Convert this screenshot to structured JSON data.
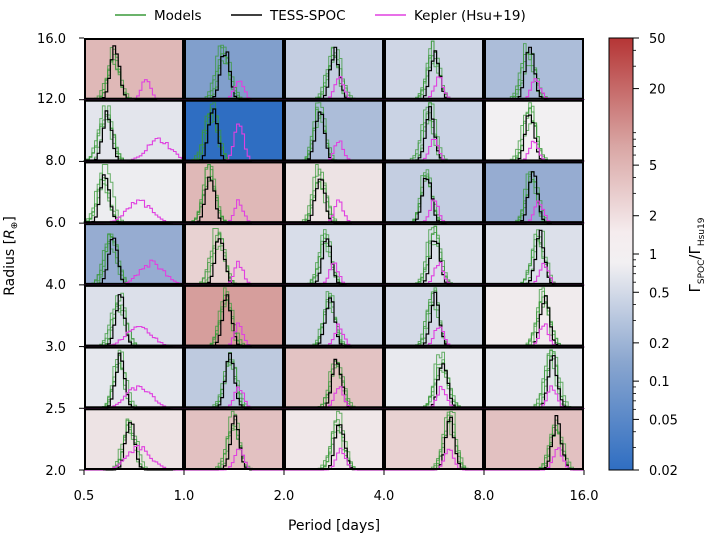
{
  "chart_data": {
    "type": "heatmap",
    "title": "",
    "xlabel": "Period [days]",
    "ylabel": "Radius [R⊕]",
    "ylabel_main": "Radius [",
    "ylabel_unit": "R",
    "ylabel_sub": "⊕",
    "ylabel_close": "]",
    "x_ticks": [
      "0.5",
      "1.0",
      "2.0",
      "4.0",
      "8.0",
      "16.0"
    ],
    "y_ticks": [
      "2.0",
      "2.5",
      "3.0",
      "4.0",
      "6.0",
      "8.0",
      "12.0",
      "16.0"
    ],
    "legend": [
      {
        "label": "Models",
        "color": "#3a9a3a"
      },
      {
        "label": "TESS-SPOC",
        "color": "#000000"
      },
      {
        "label": "Kepler (Hsu+19)",
        "color": "#e040e0"
      }
    ],
    "legend_position": "top-center",
    "colorbar": {
      "label": "ΓSPOC/ΓHsu19",
      "label_main1": "Γ",
      "label_sub1": "SPOC",
      "label_sep": "/Γ",
      "label_sub2": "Hsu19",
      "scale": "log",
      "min": 0.02,
      "max": 50,
      "colormap": "blue-white-red",
      "ticks": [
        "50",
        "20",
        "5",
        "2",
        "1",
        "0.5",
        "0.2",
        "0.1",
        "0.05",
        "0.02"
      ],
      "tick_values": [
        50,
        20,
        5,
        2,
        1,
        0.5,
        0.2,
        0.1,
        0.05,
        0.02
      ]
    },
    "row_radius_bins": [
      [
        12,
        16
      ],
      [
        8,
        12
      ],
      [
        6,
        8
      ],
      [
        4,
        6
      ],
      [
        3,
        4
      ],
      [
        2.5,
        3
      ],
      [
        2,
        2.5
      ]
    ],
    "col_period_bins": [
      [
        0.5,
        1
      ],
      [
        1,
        2
      ],
      [
        2,
        4
      ],
      [
        4,
        8
      ],
      [
        8,
        16
      ]
    ],
    "cell_ratios": [
      [
        3.0,
        0.08,
        0.35,
        0.45,
        0.2
      ],
      [
        0.7,
        0.02,
        0.2,
        0.4,
        1.0
      ],
      [
        0.9,
        3.0,
        1.3,
        0.35,
        0.12
      ],
      [
        0.12,
        1.8,
        0.55,
        0.6,
        0.6
      ],
      [
        0.6,
        5.0,
        0.45,
        0.5,
        1.1
      ],
      [
        0.75,
        0.3,
        2.4,
        0.8,
        0.75
      ],
      [
        1.3,
        2.5,
        1.2,
        1.8,
        2.5
      ]
    ],
    "histograms_note": "Each cell shows normalized period-distribution histograms for Models (green), TESS-SPOC (black) and Kepler Hsu+19 (magenta).",
    "cell_peaks": [
      [
        [
          0.3,
          0.62
        ],
        [
          0.4,
          0.55
        ],
        [
          0.5,
          0.55
        ],
        [
          0.5,
          0.55
        ],
        [
          0.45,
          0.52
        ]
      ],
      [
        [
          0.22,
          0.75
        ],
        [
          0.28,
          0.55
        ],
        [
          0.35,
          0.55
        ],
        [
          0.45,
          0.5
        ],
        [
          0.45,
          0.5
        ]
      ],
      [
        [
          0.2,
          0.55
        ],
        [
          0.25,
          0.55
        ],
        [
          0.35,
          0.55
        ],
        [
          0.42,
          0.5
        ],
        [
          0.48,
          0.55
        ]
      ],
      [
        [
          0.28,
          0.68
        ],
        [
          0.35,
          0.55
        ],
        [
          0.42,
          0.5
        ],
        [
          0.5,
          0.55
        ],
        [
          0.55,
          0.6
        ]
      ],
      [
        [
          0.35,
          0.55
        ],
        [
          0.42,
          0.55
        ],
        [
          0.45,
          0.55
        ],
        [
          0.5,
          0.55
        ],
        [
          0.6,
          0.6
        ]
      ],
      [
        [
          0.35,
          0.55
        ],
        [
          0.45,
          0.55
        ],
        [
          0.52,
          0.55
        ],
        [
          0.58,
          0.58
        ],
        [
          0.68,
          0.68
        ]
      ],
      [
        [
          0.45,
          0.55
        ],
        [
          0.5,
          0.55
        ],
        [
          0.55,
          0.57
        ],
        [
          0.65,
          0.65
        ],
        [
          0.72,
          0.74
        ]
      ]
    ]
  }
}
